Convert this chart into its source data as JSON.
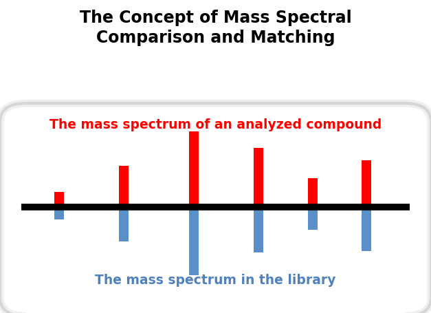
{
  "title": "The Concept of Mass Spectral\nComparison and Matching",
  "title_fontsize": 17,
  "label_top": "The mass spectrum of an analyzed compound",
  "label_bottom": "The mass spectrum in the library",
  "label_top_color": "#ff0000",
  "label_bottom_color": "#4f81bd",
  "label_fontsize": 13.5,
  "bar_positions": [
    1,
    2.2,
    3.5,
    4.7,
    5.7,
    6.7
  ],
  "red_heights": [
    0.2,
    0.55,
    1.0,
    0.78,
    0.38,
    0.62
  ],
  "blue_heights": [
    -0.16,
    -0.45,
    -0.9,
    -0.6,
    -0.3,
    -0.58
  ],
  "red_color": "#ff0000",
  "blue_color": "#5b8fc7",
  "bar_width": 0.18,
  "xlim": [
    0.3,
    7.5
  ],
  "ylim": [
    -1.15,
    1.25
  ],
  "background_color": "#ffffff",
  "outer_bg": "#ffffff",
  "box_edge_color": "#cccccc",
  "line_color": "#000000",
  "line_lw": 7
}
